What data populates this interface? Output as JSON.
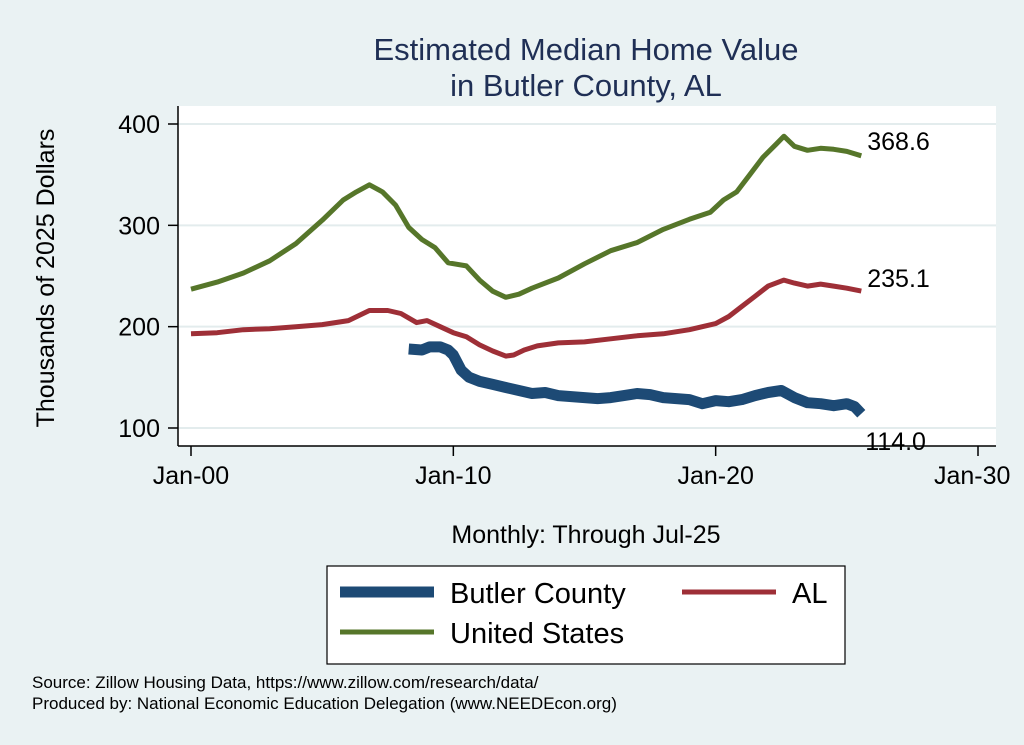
{
  "chart_data": {
    "type": "line",
    "title_line1": "Estimated Median Home Value",
    "title_line2": "in Butler County, AL",
    "ylabel": "Thousands of 2025 Dollars",
    "xlabel": "Monthly: Through Jul-25",
    "xlim": [
      2000,
      2030
    ],
    "ylim": [
      95,
      410
    ],
    "y_ticks": [
      100,
      200,
      300,
      400
    ],
    "x_ticks": [
      {
        "value": 2000,
        "label": "Jan-00"
      },
      {
        "value": 2010,
        "label": "Jan-10"
      },
      {
        "value": 2020,
        "label": "Jan-20"
      },
      {
        "value": 2030,
        "label": "Jan-30"
      }
    ],
    "grid": true,
    "legend_placement": "bottom",
    "series": [
      {
        "name": "Butler County",
        "color": "#1d4a75",
        "end_label": "114.0",
        "points": [
          [
            2008.3,
            178
          ],
          [
            2008.8,
            177
          ],
          [
            2009.1,
            180
          ],
          [
            2009.5,
            180
          ],
          [
            2009.8,
            177
          ],
          [
            2010.0,
            172
          ],
          [
            2010.3,
            157
          ],
          [
            2010.6,
            150
          ],
          [
            2011.0,
            146
          ],
          [
            2011.5,
            143
          ],
          [
            2012.0,
            140
          ],
          [
            2012.5,
            137
          ],
          [
            2013.0,
            134
          ],
          [
            2013.5,
            135
          ],
          [
            2014.0,
            132
          ],
          [
            2014.5,
            131
          ],
          [
            2015.0,
            130
          ],
          [
            2015.5,
            129
          ],
          [
            2016.0,
            130
          ],
          [
            2016.5,
            132
          ],
          [
            2017.0,
            134
          ],
          [
            2017.5,
            133
          ],
          [
            2018.0,
            130
          ],
          [
            2018.5,
            129
          ],
          [
            2019.0,
            128
          ],
          [
            2019.5,
            124
          ],
          [
            2020.0,
            127
          ],
          [
            2020.5,
            126
          ],
          [
            2021.0,
            128
          ],
          [
            2021.5,
            132
          ],
          [
            2022.0,
            135
          ],
          [
            2022.5,
            137
          ],
          [
            2023.0,
            130
          ],
          [
            2023.5,
            125
          ],
          [
            2024.0,
            124
          ],
          [
            2024.5,
            122
          ],
          [
            2025.0,
            124
          ],
          [
            2025.3,
            121
          ],
          [
            2025.55,
            114
          ]
        ]
      },
      {
        "name": "AL",
        "color": "#9e2f37",
        "end_label": "235.1",
        "points": [
          [
            2000.0,
            193
          ],
          [
            2001.0,
            194
          ],
          [
            2002.0,
            197
          ],
          [
            2003.0,
            198
          ],
          [
            2004.0,
            200
          ],
          [
            2005.0,
            202
          ],
          [
            2006.0,
            206
          ],
          [
            2006.8,
            216
          ],
          [
            2007.5,
            216
          ],
          [
            2008.0,
            213
          ],
          [
            2008.6,
            204
          ],
          [
            2009.0,
            206
          ],
          [
            2009.5,
            200
          ],
          [
            2010.0,
            194
          ],
          [
            2010.5,
            190
          ],
          [
            2011.0,
            182
          ],
          [
            2011.5,
            176
          ],
          [
            2012.0,
            171
          ],
          [
            2012.3,
            172
          ],
          [
            2012.7,
            177
          ],
          [
            2013.2,
            181
          ],
          [
            2014.0,
            184
          ],
          [
            2015.0,
            185
          ],
          [
            2016.0,
            188
          ],
          [
            2017.0,
            191
          ],
          [
            2018.0,
            193
          ],
          [
            2019.0,
            197
          ],
          [
            2020.0,
            203
          ],
          [
            2020.5,
            210
          ],
          [
            2021.0,
            220
          ],
          [
            2021.5,
            230
          ],
          [
            2022.0,
            240
          ],
          [
            2022.6,
            246
          ],
          [
            2023.0,
            243
          ],
          [
            2023.5,
            240
          ],
          [
            2024.0,
            242
          ],
          [
            2024.5,
            240
          ],
          [
            2025.0,
            238
          ],
          [
            2025.55,
            235.1
          ]
        ]
      },
      {
        "name": "United States",
        "color": "#56762a",
        "end_label": "368.6",
        "points": [
          [
            2000.0,
            237
          ],
          [
            2001.0,
            244
          ],
          [
            2002.0,
            253
          ],
          [
            2003.0,
            265
          ],
          [
            2004.0,
            282
          ],
          [
            2005.0,
            305
          ],
          [
            2005.8,
            325
          ],
          [
            2006.3,
            333
          ],
          [
            2006.8,
            340
          ],
          [
            2007.3,
            333
          ],
          [
            2007.8,
            320
          ],
          [
            2008.3,
            298
          ],
          [
            2008.8,
            286
          ],
          [
            2009.3,
            278
          ],
          [
            2009.8,
            263
          ],
          [
            2010.5,
            260
          ],
          [
            2011.0,
            246
          ],
          [
            2011.5,
            235
          ],
          [
            2012.0,
            229
          ],
          [
            2012.5,
            232
          ],
          [
            2013.0,
            238
          ],
          [
            2014.0,
            248
          ],
          [
            2015.0,
            262
          ],
          [
            2016.0,
            275
          ],
          [
            2017.0,
            283
          ],
          [
            2018.0,
            296
          ],
          [
            2019.0,
            306
          ],
          [
            2019.8,
            313
          ],
          [
            2020.3,
            325
          ],
          [
            2020.8,
            333
          ],
          [
            2021.3,
            350
          ],
          [
            2021.8,
            367
          ],
          [
            2022.3,
            380
          ],
          [
            2022.6,
            388
          ],
          [
            2023.0,
            378
          ],
          [
            2023.5,
            374
          ],
          [
            2024.0,
            376
          ],
          [
            2024.5,
            375
          ],
          [
            2025.0,
            373
          ],
          [
            2025.55,
            368.6
          ]
        ]
      }
    ]
  },
  "source_line1": "Source: Zillow Housing Data, https://www.zillow.com/research/data/",
  "source_line2": "Produced by: National Economic Education Delegation (www.NEEDEcon.org)"
}
